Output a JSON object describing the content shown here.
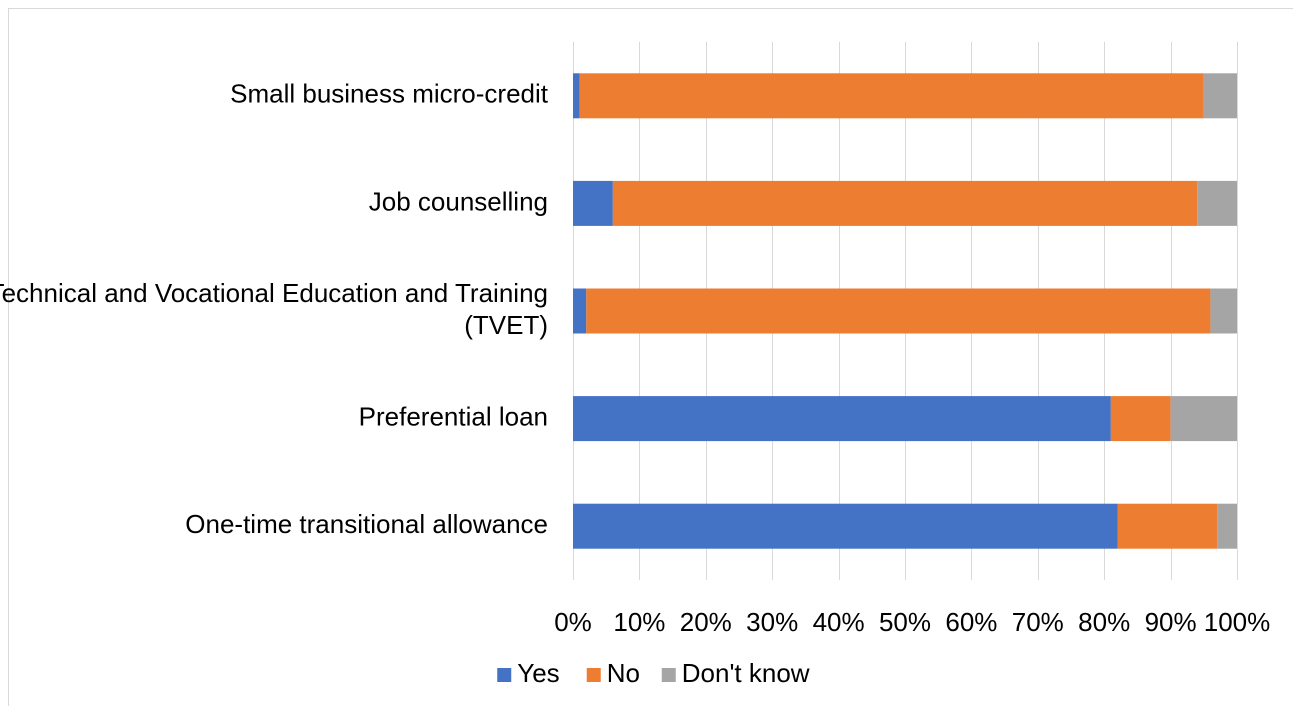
{
  "chart_data": {
    "type": "bar",
    "orientation": "horizontal",
    "stacked": "percent",
    "categories": [
      "Small business micro-credit",
      "Job counselling",
      "Technical and Vocational Education and Training (TVET)",
      "Preferential loan",
      "One-time transitional allowance"
    ],
    "category_lines": [
      [
        "Small business micro-credit"
      ],
      [
        "Job counselling"
      ],
      [
        "Technical and Vocational Education and Training",
        "(TVET)"
      ],
      [
        "Preferential loan"
      ],
      [
        "One-time transitional allowance"
      ]
    ],
    "series": [
      {
        "name": "Yes",
        "color": "#4472c4",
        "values": [
          1,
          6,
          2,
          81,
          82
        ]
      },
      {
        "name": "No",
        "color": "#ed7d31",
        "values": [
          94,
          88,
          94,
          9,
          15
        ]
      },
      {
        "name": "Don't know",
        "color": "#a5a5a5",
        "values": [
          5,
          6,
          4,
          10,
          3
        ]
      }
    ],
    "xlim": [
      0,
      100
    ],
    "x_ticks": [
      "0%",
      "10%",
      "20%",
      "30%",
      "40%",
      "50%",
      "60%",
      "70%",
      "80%",
      "90%",
      "100%"
    ],
    "grid": true,
    "legend": "bottom"
  }
}
